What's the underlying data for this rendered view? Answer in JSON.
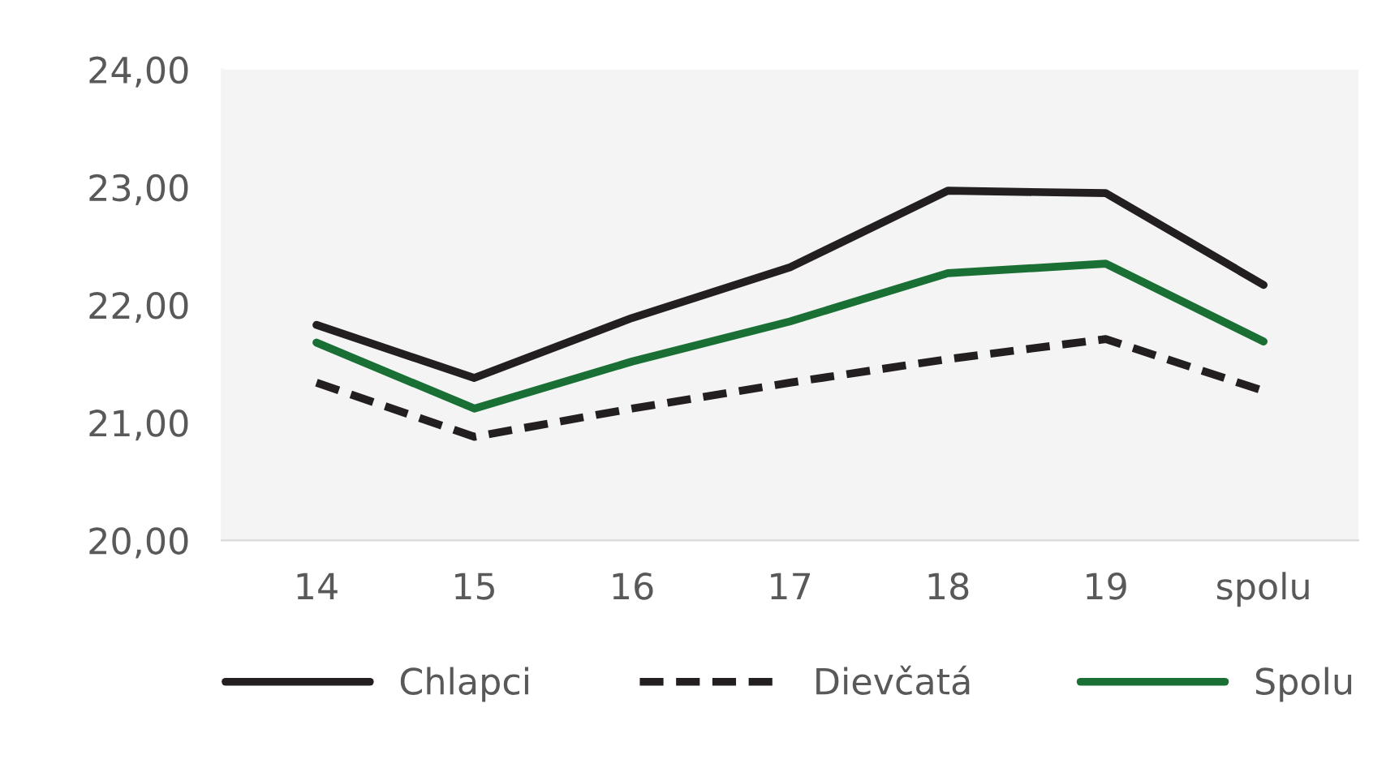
{
  "chart_data": {
    "type": "line",
    "categories": [
      "14",
      "15",
      "16",
      "17",
      "18",
      "19",
      "spolu"
    ],
    "series": [
      {
        "name": "Chlapci",
        "color": "#231f20",
        "line_style": "solid",
        "values": [
          21.83,
          21.38,
          21.89,
          22.32,
          22.97,
          22.95,
          22.17
        ]
      },
      {
        "name": "Dievčatá",
        "color": "#231f20",
        "line_style": "dashed",
        "values": [
          21.34,
          20.88,
          21.12,
          21.34,
          21.54,
          21.71,
          21.27
        ]
      },
      {
        "name": "Spolu",
        "color": "#1a7034",
        "line_style": "solid",
        "values": [
          21.68,
          21.12,
          21.52,
          21.86,
          22.27,
          22.35,
          21.69
        ]
      }
    ],
    "ylim": [
      20,
      24
    ],
    "yticks": [
      {
        "value": 20,
        "label": "20,00"
      },
      {
        "value": 21,
        "label": "21,00"
      },
      {
        "value": 22,
        "label": "22,00"
      },
      {
        "value": 23,
        "label": "23,00"
      },
      {
        "value": 24,
        "label": "24,00"
      }
    ],
    "grid": false,
    "legend": "bottom",
    "marker": "none"
  }
}
